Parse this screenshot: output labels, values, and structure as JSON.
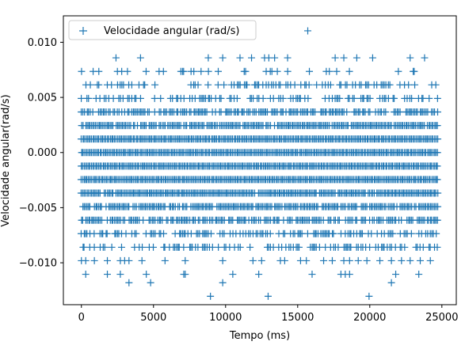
{
  "chart_data": {
    "type": "scatter",
    "xlabel": "Tempo (ms)",
    "ylabel": "Velocidade angular(rad/s)",
    "xlim": [
      -1250,
      26000
    ],
    "ylim": [
      -0.0138,
      0.0124
    ],
    "xticks": [
      0,
      5000,
      10000,
      15000,
      20000,
      25000
    ],
    "xtick_labels": [
      "0",
      "5000",
      "10000",
      "15000",
      "20000",
      "25000"
    ],
    "yticks": [
      -0.01,
      -0.005,
      0.0,
      0.005,
      0.01
    ],
    "ytick_labels": [
      "−0.010",
      "−0.005",
      "0.000",
      "0.005",
      "0.010"
    ],
    "marker": "+",
    "color": "#1f77b4",
    "legend": {
      "label": "Velocidade angular (rad/s)",
      "location": "upper left"
    },
    "level_step": 0.001227,
    "series": [
      {
        "name": "Velocidade angular (rad/s)",
        "x_range": [
          0,
          24700
        ],
        "sparse_points": [
          {
            "x": 15700,
            "y": 0.01104
          },
          {
            "x": 8950,
            "y": -0.01304
          },
          {
            "x": 12950,
            "y": -0.01304
          },
          {
            "x": 19950,
            "y": -0.01304
          },
          {
            "x": 3300,
            "y": -0.01181
          },
          {
            "x": 4800,
            "y": -0.01181
          },
          {
            "x": 9800,
            "y": -0.01181
          },
          {
            "x": 21500,
            "y": -0.01181
          }
        ],
        "levels": [
          {
            "y": 0.00859,
            "xs": [
              2400,
              4100,
              8800,
              9800,
              11000,
              11800,
              12700,
              13000,
              13400,
              14300,
              17600,
              18200,
              19100,
              20200,
              22800,
              23800
            ]
          },
          {
            "y": 0.00736,
            "density": 0.14
          },
          {
            "y": 0.00614,
            "density": 0.3
          },
          {
            "y": 0.00491,
            "density": 0.4
          },
          {
            "y": 0.00368,
            "density": 0.7
          },
          {
            "y": 0.00245,
            "density": 0.9
          },
          {
            "y": 0.00123,
            "density": 1.0
          },
          {
            "y": 0.0,
            "density": 1.0
          },
          {
            "y": -0.00123,
            "density": 1.0
          },
          {
            "y": -0.00245,
            "density": 1.0
          },
          {
            "y": -0.00368,
            "density": 0.95
          },
          {
            "y": -0.00491,
            "density": 0.85
          },
          {
            "y": -0.00614,
            "density": 0.75
          },
          {
            "y": -0.00736,
            "density": 0.5
          },
          {
            "y": -0.00859,
            "density": 0.35
          },
          {
            "y": -0.00981,
            "xs": [
              0,
              300,
              900,
              1800,
              2700,
              3000,
              3300,
              4200,
              5800,
              7200,
              9800,
              11900,
              12500,
              13800,
              14100,
              15200,
              15600,
              16800,
              17400,
              18200,
              18600,
              19200,
              19800,
              20700,
              21500,
              22200,
              22800,
              23500,
              24200
            ]
          },
          {
            "y": -0.01104,
            "xs": [
              300,
              1800,
              2700,
              4500,
              7100,
              7200,
              10500,
              12300,
              16000,
              18000,
              18300,
              18600,
              21800,
              23400
            ]
          }
        ]
      }
    ]
  }
}
